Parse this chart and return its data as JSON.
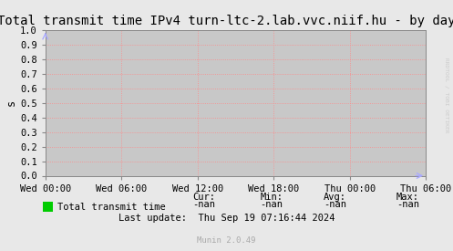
{
  "title": "Total transmit time IPv4 turn-ltc-2.lab.vvc.niif.hu - by day",
  "ylabel": "s",
  "ylim": [
    0.0,
    1.0
  ],
  "yticks": [
    0.0,
    0.1,
    0.2,
    0.3,
    0.4,
    0.5,
    0.6,
    0.7,
    0.8,
    0.9,
    1.0
  ],
  "ytick_labels": [
    "0.0",
    "0.1",
    "0.2",
    "0.3",
    "0.4",
    "0.5",
    "0.6",
    "0.7",
    "0.8",
    "0.9",
    "1.0"
  ],
  "xtick_labels": [
    "Wed 00:00",
    "Wed 06:00",
    "Wed 12:00",
    "Wed 18:00",
    "Thu 00:00",
    "Thu 06:00"
  ],
  "xtick_positions": [
    0,
    6,
    12,
    18,
    24,
    30
  ],
  "xlim": [
    0,
    30
  ],
  "bg_color": "#e8e8e8",
  "plot_bg_color": "#c8c8c8",
  "grid_color": "#ff8888",
  "title_fontsize": 10,
  "axis_fontsize": 7.5,
  "legend_label": "Total transmit time",
  "legend_color": "#00cc00",
  "cur_label": "Cur:",
  "min_label": "Min:",
  "avg_label": "Avg:",
  "max_label": "Max:",
  "cur_val": "-nan",
  "min_val": "-nan",
  "avg_val": "-nan",
  "max_val": "-nan",
  "last_update": "Last update:  Thu Sep 19 07:16:44 2024",
  "munin_text": "Munin 2.0.49",
  "rrdtool_text": "RRDTOOL / TOBI OETIKER",
  "arrow_color": "#aaaaff"
}
